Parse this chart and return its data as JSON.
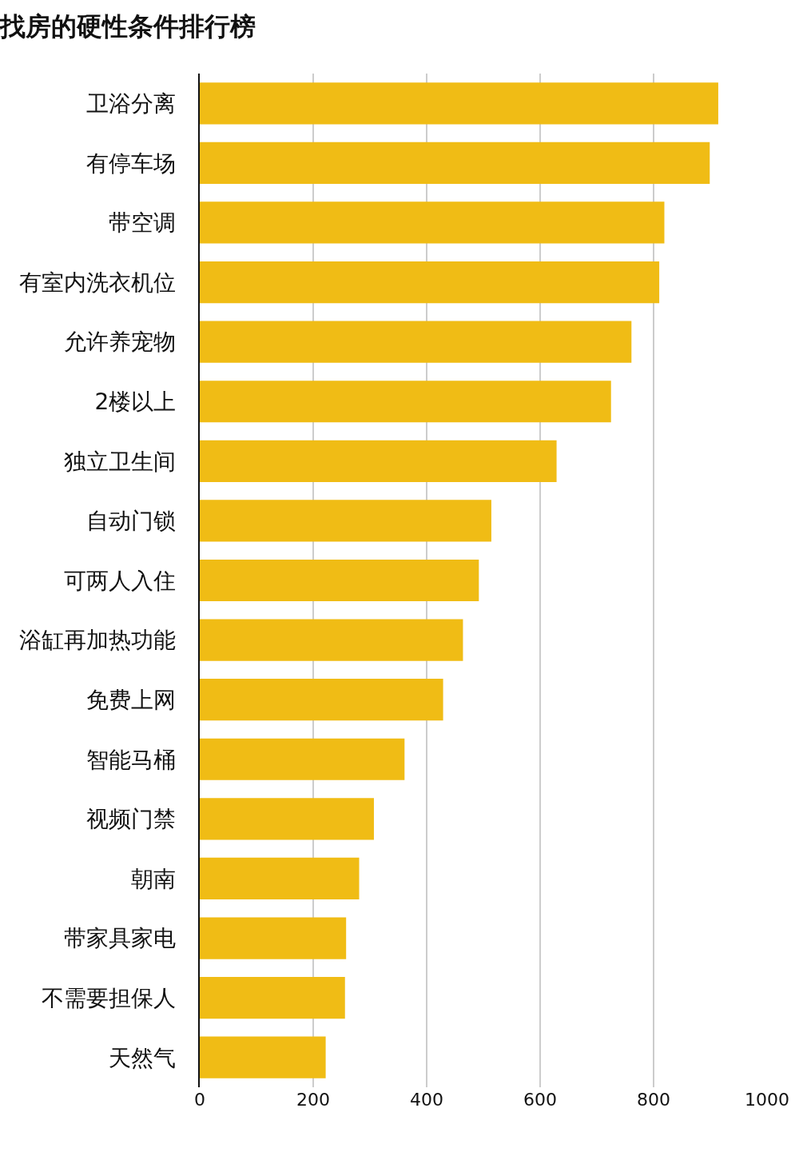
{
  "chart_data": {
    "type": "bar",
    "orientation": "horizontal",
    "title": "找房的硬性条件排行榜",
    "categories": [
      "卫浴分离",
      "有停车场",
      "带空调",
      "有室内洗衣机位",
      "允许养宠物",
      "2楼以上",
      "独立卫生间",
      "自动门锁",
      "可两人入住",
      "浴缸再加热功能",
      "免费上网",
      "智能马桶",
      "视频门禁",
      "朝南",
      "带家具家电",
      "不需要担保人",
      "天然气"
    ],
    "values": [
      914,
      899,
      819,
      810,
      761,
      725,
      629,
      514,
      492,
      464,
      429,
      361,
      307,
      281,
      258,
      256,
      222
    ],
    "color": "#f0bc15",
    "xlim": [
      0,
      1000
    ],
    "xticks": [
      0,
      200,
      400,
      600,
      800,
      1000
    ],
    "grid": "x",
    "legend": false
  }
}
